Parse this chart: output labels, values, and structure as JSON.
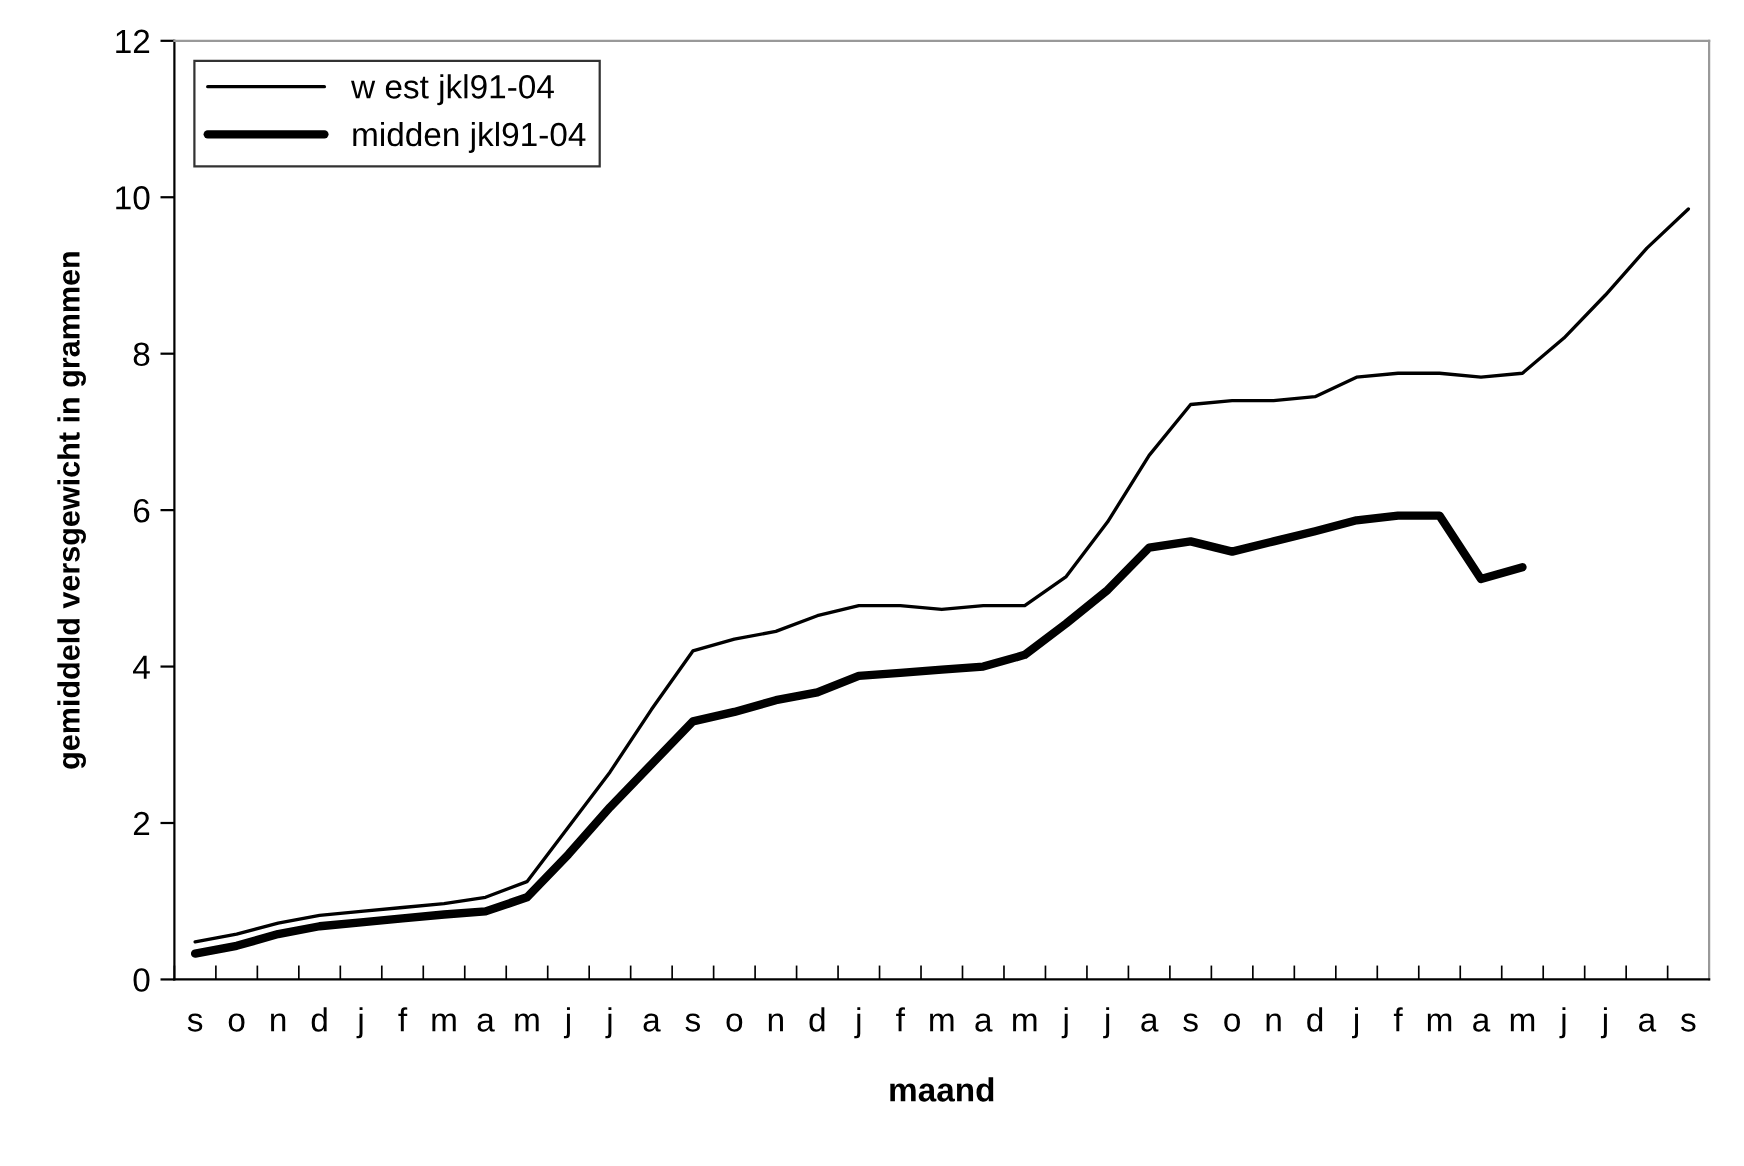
{
  "chart_data": {
    "type": "line",
    "xlabel": "maand",
    "ylabel": "gemiddeld versgewicht in grammen",
    "categories": [
      "s",
      "o",
      "n",
      "d",
      "j",
      "f",
      "m",
      "a",
      "m",
      "j",
      "j",
      "a",
      "s",
      "o",
      "n",
      "d",
      "j",
      "f",
      "m",
      "a",
      "m",
      "j",
      "j",
      "a",
      "s",
      "o",
      "n",
      "d",
      "j",
      "f",
      "m",
      "a",
      "m",
      "j",
      "j",
      "a",
      "s"
    ],
    "series": [
      {
        "name": "w est jkl91-04",
        "color": "#000000",
        "values": [
          0.48,
          0.58,
          0.72,
          0.82,
          0.87,
          0.92,
          0.97,
          1.05,
          1.25,
          1.95,
          2.65,
          3.45,
          4.2,
          4.35,
          4.45,
          4.65,
          4.78,
          4.78,
          4.73,
          4.78,
          4.78,
          5.15,
          5.85,
          6.7,
          7.35,
          7.4,
          7.4,
          7.45,
          7.7,
          7.75,
          7.75,
          7.7,
          7.75,
          8.2,
          8.75,
          9.35,
          9.85
        ]
      },
      {
        "name": "midden jkl91-04",
        "color": "#000000",
        "values": [
          0.33,
          0.43,
          0.58,
          0.68,
          0.73,
          0.78,
          0.83,
          0.87,
          1.05,
          1.6,
          2.2,
          2.75,
          3.3,
          3.42,
          3.57,
          3.67,
          3.88,
          3.92,
          3.96,
          4.0,
          4.15,
          4.55,
          4.98,
          5.52,
          5.6,
          5.47,
          5.6,
          5.73,
          5.87,
          5.93,
          5.93,
          5.12,
          5.27,
          null,
          null,
          null,
          null
        ]
      }
    ],
    "ylim": [
      0,
      12
    ],
    "yticks": [
      0,
      2,
      4,
      6,
      8,
      10,
      12
    ],
    "grid": false,
    "legend": "top left",
    "marker": "none",
    "line_style": "solid"
  }
}
